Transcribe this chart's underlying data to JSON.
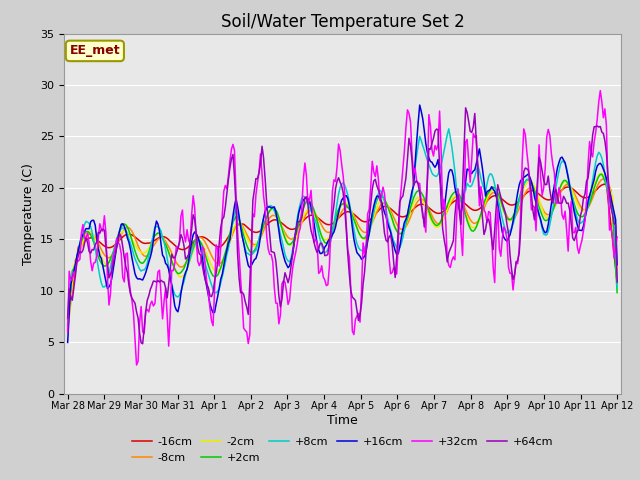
{
  "title": "Soil/Water Temperature Set 2",
  "xlabel": "Time",
  "ylabel": "Temperature (C)",
  "ylim": [
    0,
    35
  ],
  "yticks": [
    0,
    5,
    10,
    15,
    20,
    25,
    30,
    35
  ],
  "xtick_labels": [
    "Mar 28",
    "Mar 29",
    "Mar 30",
    "Mar 31",
    "Apr 1",
    "Apr 2",
    "Apr 3",
    "Apr 4",
    "Apr 5",
    "Apr 6",
    "Apr 7",
    "Apr 8",
    "Apr 9",
    "Apr 10",
    "Apr 11",
    "Apr 12"
  ],
  "series_colors": {
    "-16cm": "#dd0000",
    "-8cm": "#ff8800",
    "-2cm": "#eeee00",
    "+2cm": "#00cc00",
    "+8cm": "#00cccc",
    "+16cm": "#0000dd",
    "+32cm": "#ff00ff",
    "+64cm": "#9900bb"
  },
  "label_box_text": "EE_met",
  "label_box_facecolor": "#ffffcc",
  "label_box_edgecolor": "#999900",
  "label_box_textcolor": "#880000",
  "fig_facecolor": "#d0d0d0",
  "plot_bg_color": "#e8e8e8",
  "grid_color": "#ffffff",
  "title_fontsize": 12,
  "axis_label_fontsize": 9,
  "tick_fontsize": 8,
  "legend_fontsize": 9,
  "num_points": 360
}
